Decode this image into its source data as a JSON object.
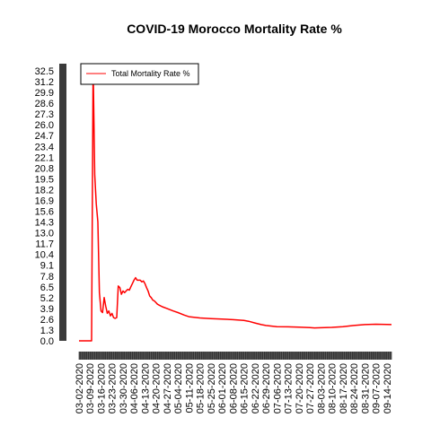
{
  "chart_data": {
    "type": "line",
    "title": "COVID-19 Morocco Mortality Rate %",
    "xlabel": "",
    "ylabel": "",
    "ylim": [
      0,
      32.5
    ],
    "yticks": [
      "0.0",
      "1.3",
      "2.6",
      "3.9",
      "5.2",
      "6.5",
      "7.8",
      "9.1",
      "10.4",
      "11.7",
      "13.0",
      "14.3",
      "15.6",
      "16.9",
      "18.2",
      "19.5",
      "20.8",
      "22.1",
      "23.4",
      "24.7",
      "26.0",
      "27.3",
      "28.6",
      "29.9",
      "31.2",
      "32.5"
    ],
    "xtick_labels": [
      "03-02-2020",
      "03-09-2020",
      "03-16-2020",
      "03-23-2020",
      "03-30-2020",
      "04-06-2020",
      "04-13-2020",
      "04-20-2020",
      "04-27-2020",
      "05-04-2020",
      "05-11-2020",
      "05-18-2020",
      "05-25-2020",
      "06-01-2020",
      "06-08-2020",
      "06-15-2020",
      "06-22-2020",
      "06-29-2020",
      "07-06-2020",
      "07-13-2020",
      "07-20-2020",
      "07-27-2020",
      "08-03-2020",
      "08-10-2020",
      "08-17-2020",
      "08-24-2020",
      "08-31-2020",
      "09-07-2020",
      "09-14-2020"
    ],
    "x_start": "03-02-2020",
    "x_end": "09-17-2020",
    "legend": "top-left",
    "series": [
      {
        "name": "Total Mortality Rate %",
        "color": "#ff0000",
        "points": [
          [
            "03-02-2020",
            0
          ],
          [
            "03-05-2020",
            0
          ],
          [
            "03-06-2020",
            0
          ],
          [
            "03-07-2020",
            0
          ],
          [
            "03-08-2020",
            0
          ],
          [
            "03-09-2020",
            0
          ],
          [
            "03-10-2020",
            0
          ],
          [
            "03-11-2020",
            33.3
          ],
          [
            "03-12-2020",
            20.0
          ],
          [
            "03-13-2020",
            16.5
          ],
          [
            "03-14-2020",
            14.3
          ],
          [
            "03-15-2020",
            5.8
          ],
          [
            "03-16-2020",
            3.6
          ],
          [
            "03-17-2020",
            3.4
          ],
          [
            "03-18-2020",
            5.2
          ],
          [
            "03-19-2020",
            4.2
          ],
          [
            "03-20-2020",
            3.3
          ],
          [
            "03-21-2020",
            3.6
          ],
          [
            "03-22-2020",
            3.0
          ],
          [
            "03-23-2020",
            3.3
          ],
          [
            "03-24-2020",
            2.8
          ],
          [
            "03-25-2020",
            2.7
          ],
          [
            "03-26-2020",
            2.8
          ],
          [
            "03-27-2020",
            6.6
          ],
          [
            "03-28-2020",
            6.4
          ],
          [
            "03-29-2020",
            5.6
          ],
          [
            "03-30-2020",
            6.0
          ],
          [
            "03-31-2020",
            5.8
          ],
          [
            "04-01-2020",
            6.0
          ],
          [
            "04-02-2020",
            6.2
          ],
          [
            "04-03-2020",
            6.1
          ],
          [
            "04-04-2020",
            6.5
          ],
          [
            "04-05-2020",
            6.9
          ],
          [
            "04-06-2020",
            7.3
          ],
          [
            "04-07-2020",
            7.6
          ],
          [
            "04-08-2020",
            7.3
          ],
          [
            "04-09-2020",
            7.3
          ],
          [
            "04-10-2020",
            7.3
          ],
          [
            "04-11-2020",
            7.1
          ],
          [
            "04-12-2020",
            7.2
          ],
          [
            "04-13-2020",
            6.9
          ],
          [
            "04-14-2020",
            6.4
          ],
          [
            "04-15-2020",
            6.0
          ],
          [
            "04-16-2020",
            5.4
          ],
          [
            "04-17-2020",
            5.2
          ],
          [
            "04-18-2020",
            4.9
          ],
          [
            "04-19-2020",
            4.8
          ],
          [
            "04-20-2020",
            4.6
          ],
          [
            "04-21-2020",
            4.4
          ],
          [
            "04-22-2020",
            4.3
          ],
          [
            "04-24-2020",
            4.1
          ],
          [
            "04-27-2020",
            3.9
          ],
          [
            "05-01-2020",
            3.6
          ],
          [
            "05-04-2020",
            3.4
          ],
          [
            "05-08-2020",
            3.1
          ],
          [
            "05-11-2020",
            2.9
          ],
          [
            "05-18-2020",
            2.75
          ],
          [
            "05-25-2020",
            2.68
          ],
          [
            "06-01-2020",
            2.62
          ],
          [
            "06-08-2020",
            2.55
          ],
          [
            "06-15-2020",
            2.45
          ],
          [
            "06-18-2020",
            2.35
          ],
          [
            "06-22-2020",
            2.15
          ],
          [
            "06-26-2020",
            1.95
          ],
          [
            "06-29-2020",
            1.85
          ],
          [
            "07-06-2020",
            1.7
          ],
          [
            "07-13-2020",
            1.68
          ],
          [
            "07-20-2020",
            1.65
          ],
          [
            "07-27-2020",
            1.6
          ],
          [
            "07-30-2020",
            1.55
          ],
          [
            "08-03-2020",
            1.58
          ],
          [
            "08-10-2020",
            1.62
          ],
          [
            "08-17-2020",
            1.7
          ],
          [
            "08-24-2020",
            1.85
          ],
          [
            "08-31-2020",
            1.95
          ],
          [
            "09-07-2020",
            2.0
          ],
          [
            "09-14-2020",
            1.98
          ],
          [
            "09-17-2020",
            1.95
          ]
        ]
      }
    ]
  }
}
